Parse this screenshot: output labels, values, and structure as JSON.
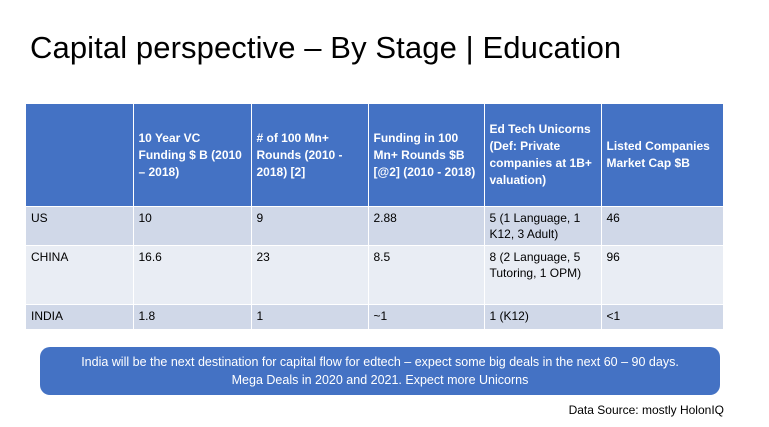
{
  "title": "Capital perspective – By Stage | Education",
  "table": {
    "headers": [
      "",
      "10 Year VC Funding $ B (2010 – 2018)",
      "# of 100 Mn+ Rounds (2010 - 2018) [2]",
      "Funding  in 100 Mn+ Rounds $B [@2] (2010 - 2018)",
      "Ed Tech Unicorns (Def: Private companies at 1B+ valuation)",
      "Listed Companies Market Cap $B"
    ],
    "rows": [
      [
        "US",
        "10",
        "9",
        "2.88",
        "5 (1 Language, 1 K12, 3 Adult)",
        "46"
      ],
      [
        "CHINA",
        "16.6",
        "23",
        "8.5",
        "8 (2 Language, 5 Tutoring, 1 OPM)",
        "96"
      ],
      [
        "INDIA",
        "1.8",
        "1",
        "~1",
        "1 (K12)",
        "<1"
      ]
    ]
  },
  "callout": {
    "line1": "India will be the next destination for capital flow for  edtech – expect some big deals in the next 60 – 90 days.",
    "line2": "Mega Deals in 2020 and 2021. Expect more Unicorns"
  },
  "source": "Data Source: mostly HolonIQ",
  "colors": {
    "header_bg": "#4472c4",
    "row_odd": "#d0d8e8",
    "row_even": "#e9edf4",
    "callout_bg": "#4472c4"
  }
}
